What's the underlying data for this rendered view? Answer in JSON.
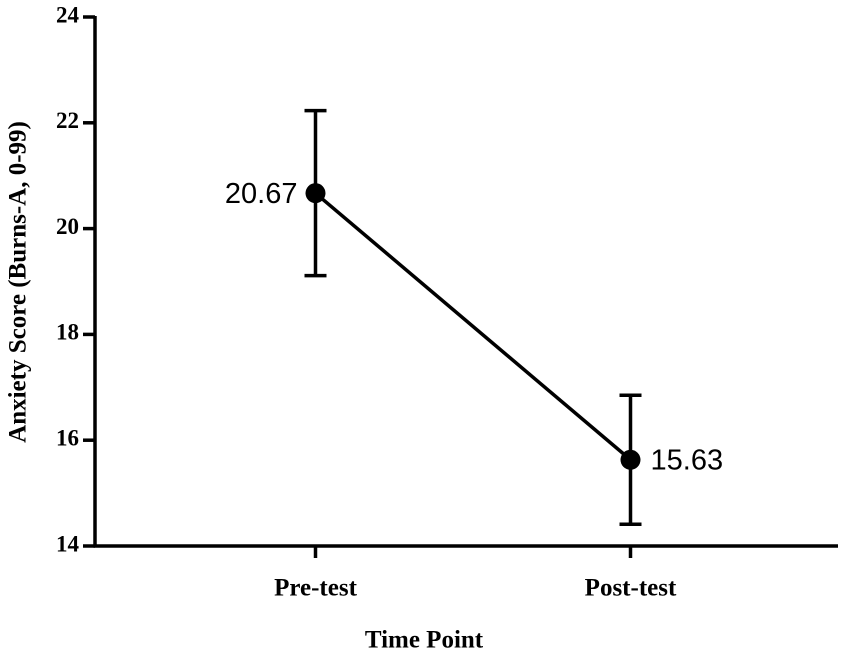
{
  "chart_data": {
    "type": "line",
    "x_label": "Time Point",
    "y_label": "Anxiety Score (Burns-A, 0-99)",
    "categories": [
      "Pre-test",
      "Post-test"
    ],
    "values": [
      20.67,
      15.63
    ],
    "errors": [
      1.56,
      1.22
    ],
    "color": "#000000",
    "ylim": [
      14,
      24
    ],
    "yticks": [
      14,
      16,
      18,
      20,
      22,
      24
    ],
    "grid": false
  }
}
